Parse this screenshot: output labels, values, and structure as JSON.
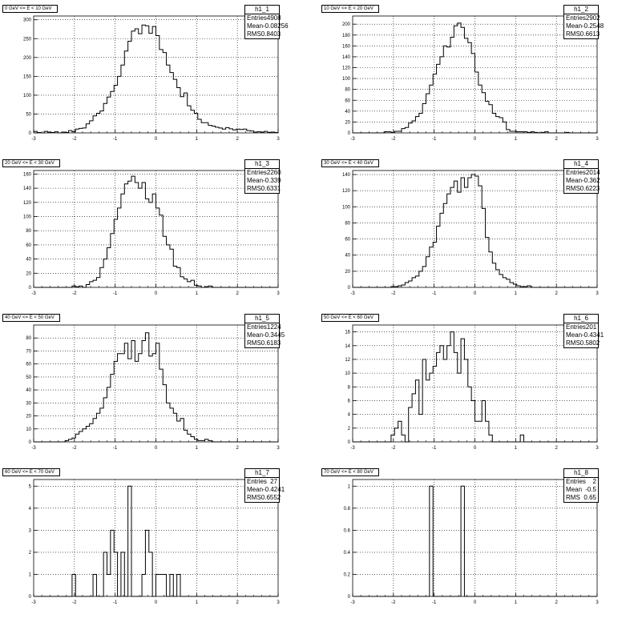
{
  "canvas_footer": "",
  "chart_data": [
    {
      "type": "bar",
      "title": "0 GeV <= E < 10 GeV",
      "name": "h1_1",
      "stats": {
        "entries": "4908",
        "mean": "-0.08256",
        "rms": "0.8403"
      },
      "xlim": [
        -3,
        3
      ],
      "ylim": [
        0,
        310
      ],
      "xticks": [
        -3,
        -2,
        -1,
        0,
        1,
        2,
        3
      ],
      "yticks": [
        0,
        50,
        100,
        150,
        200,
        250,
        300
      ],
      "values": [
        4,
        1,
        0,
        4,
        2,
        1,
        3,
        0,
        2,
        1,
        6,
        3,
        10,
        12,
        13,
        24,
        32,
        45,
        52,
        58,
        78,
        95,
        110,
        126,
        150,
        180,
        217,
        243,
        270,
        276,
        263,
        286,
        284,
        264,
        282,
        258,
        221,
        213,
        180,
        160,
        142,
        120,
        96,
        106,
        72,
        60,
        52,
        36,
        27,
        27,
        20,
        18,
        15,
        13,
        10,
        14,
        11,
        8,
        10,
        9,
        10,
        6,
        5,
        2,
        3,
        2,
        4,
        1,
        2,
        1
      ]
    },
    {
      "type": "bar",
      "title": "10 GeV <= E < 20 GeV",
      "name": "h1_2",
      "stats": {
        "entries": "2902",
        "mean": "-0.2548",
        "rms": "0.6613"
      },
      "xlim": [
        -3,
        3
      ],
      "ylim": [
        0,
        215
      ],
      "xticks": [
        -3,
        -2,
        -1,
        0,
        1,
        2,
        3
      ],
      "yticks": [
        0,
        20,
        40,
        60,
        80,
        100,
        120,
        140,
        160,
        180,
        200
      ],
      "values": [
        0,
        0,
        0,
        0,
        0,
        0,
        0,
        0,
        0,
        2,
        2,
        1,
        3,
        3,
        8,
        10,
        18,
        22,
        30,
        36,
        54,
        72,
        88,
        108,
        126,
        140,
        160,
        158,
        176,
        197,
        202,
        194,
        174,
        166,
        146,
        112,
        88,
        74,
        58,
        52,
        36,
        30,
        28,
        20,
        6,
        3,
        3,
        2,
        2,
        2,
        1,
        2,
        1,
        0,
        1,
        2,
        0,
        0,
        0,
        0,
        0,
        1,
        0,
        0,
        0,
        0,
        0,
        0,
        0,
        0
      ]
    },
    {
      "type": "bar",
      "title": "20 GeV <= E < 30 GeV",
      "name": "h1_3",
      "stats": {
        "entries": "2260",
        "mean": "-0.339",
        "rms": "0.6331"
      },
      "xlim": [
        -3,
        3
      ],
      "ylim": [
        0,
        165
      ],
      "xticks": [
        -3,
        -2,
        -1,
        0,
        1,
        2,
        3
      ],
      "yticks": [
        0,
        20,
        40,
        60,
        80,
        100,
        120,
        140,
        160
      ],
      "values": [
        0,
        0,
        0,
        0,
        0,
        0,
        0,
        0,
        0,
        0,
        0,
        2,
        1,
        2,
        0,
        4,
        8,
        10,
        14,
        28,
        40,
        56,
        76,
        96,
        112,
        132,
        146,
        150,
        157,
        148,
        140,
        148,
        125,
        120,
        132,
        112,
        102,
        72,
        60,
        54,
        30,
        28,
        15,
        12,
        8,
        10,
        3,
        2,
        0,
        1,
        2,
        0,
        0,
        0,
        0,
        0,
        0,
        0,
        0,
        0,
        0,
        0,
        0,
        0,
        0,
        0,
        0,
        0,
        0,
        0
      ]
    },
    {
      "type": "bar",
      "title": "30 GeV <= E < 40 GeV",
      "name": "h1_4",
      "stats": {
        "entries": "2014",
        "mean": "-0.362",
        "rms": "0.6223"
      },
      "xlim": [
        -3,
        3
      ],
      "ylim": [
        0,
        145
      ],
      "xticks": [
        -3,
        -2,
        -1,
        0,
        1,
        2,
        3
      ],
      "yticks": [
        0,
        20,
        40,
        60,
        80,
        100,
        120,
        140
      ],
      "values": [
        0,
        0,
        0,
        0,
        0,
        0,
        0,
        0,
        0,
        0,
        0,
        1,
        1,
        2,
        3,
        6,
        8,
        12,
        14,
        20,
        26,
        38,
        50,
        56,
        76,
        92,
        104,
        116,
        124,
        132,
        118,
        136,
        124,
        136,
        140,
        138,
        126,
        98,
        62,
        44,
        30,
        22,
        16,
        12,
        10,
        6,
        4,
        2,
        1,
        1,
        2,
        0,
        0,
        0,
        0,
        0,
        0,
        0,
        0,
        0,
        0,
        0,
        0,
        0,
        0,
        0,
        0,
        0,
        0,
        0
      ]
    },
    {
      "type": "bar",
      "title": "40 GeV <= E < 50 GeV",
      "name": "h1_5",
      "stats": {
        "entries": "1224",
        "mean": "-0.3445",
        "rms": "0.6183"
      },
      "xlim": [
        -3,
        3
      ],
      "ylim": [
        0,
        90
      ],
      "xticks": [
        -3,
        -2,
        -1,
        0,
        1,
        2,
        3
      ],
      "yticks": [
        0,
        10,
        20,
        30,
        40,
        50,
        60,
        70,
        80
      ],
      "values": [
        0,
        0,
        0,
        0,
        0,
        0,
        0,
        0,
        0,
        1,
        2,
        3,
        6,
        8,
        10,
        12,
        14,
        18,
        22,
        26,
        34,
        42,
        52,
        62,
        68,
        68,
        76,
        64,
        78,
        62,
        68,
        78,
        84,
        66,
        68,
        76,
        56,
        44,
        30,
        26,
        22,
        16,
        18,
        9,
        6,
        4,
        2,
        1,
        1,
        2,
        1,
        0,
        0,
        0,
        0,
        0,
        0,
        0,
        0,
        0,
        0,
        0,
        0,
        0,
        0,
        0,
        0,
        0,
        0,
        0
      ]
    },
    {
      "type": "bar",
      "title": "50 GeV <= E < 60 GeV",
      "name": "h1_6",
      "stats": {
        "entries": "201",
        "mean": "-0.4341",
        "rms": "0.5802"
      },
      "xlim": [
        -3,
        3
      ],
      "ylim": [
        0,
        17
      ],
      "xticks": [
        -3,
        -2,
        -1,
        0,
        1,
        2,
        3
      ],
      "yticks": [
        0,
        2,
        4,
        6,
        8,
        10,
        12,
        14,
        16
      ],
      "values": [
        0,
        0,
        0,
        0,
        0,
        0,
        0,
        0,
        0,
        0,
        0,
        1,
        2,
        3,
        1,
        0,
        5,
        7,
        9,
        4,
        12,
        9,
        10,
        11,
        13,
        14,
        12,
        14,
        16,
        13,
        10,
        15,
        12,
        8,
        6,
        3,
        3,
        6,
        3,
        1,
        0,
        0,
        0,
        0,
        0,
        0,
        0,
        0,
        1,
        0,
        0,
        0,
        0,
        0,
        0,
        0,
        0,
        0,
        0,
        0,
        0,
        0,
        0,
        0,
        0,
        0,
        0,
        0,
        0,
        0
      ]
    },
    {
      "type": "bar",
      "title": "60 GeV <= E < 70 GeV",
      "name": "h1_7",
      "stats": {
        "entries": "27",
        "mean": "-0.4241",
        "rms": "0.6552"
      },
      "xlim": [
        -3,
        3
      ],
      "ylim": [
        0,
        5.3
      ],
      "xticks": [
        -3,
        -2,
        -1,
        0,
        1,
        2,
        3
      ],
      "yticks": [
        0,
        1,
        2,
        3,
        4,
        5
      ],
      "values": [
        0,
        0,
        0,
        0,
        0,
        0,
        0,
        0,
        0,
        0,
        0,
        1,
        0,
        0,
        0,
        0,
        0,
        1,
        0,
        0,
        2,
        1,
        3,
        2,
        0,
        2,
        0,
        5,
        0,
        0,
        0,
        1,
        3,
        2,
        0,
        1,
        1,
        1,
        0,
        1,
        0,
        1,
        0,
        0,
        0,
        0,
        0,
        0,
        0,
        0,
        0,
        0,
        0,
        0,
        0,
        0,
        0,
        0,
        0,
        0,
        0,
        0,
        0,
        0,
        0,
        0,
        0,
        0,
        0,
        0
      ]
    },
    {
      "type": "bar",
      "title": "70 GeV <= E < 80 GeV",
      "name": "h1_8",
      "stats": {
        "entries": "2",
        "mean": "-0.5",
        "rms": "0.65"
      },
      "xlim": [
        -3,
        3
      ],
      "ylim": [
        0,
        1.06
      ],
      "xticks": [
        -3,
        -2,
        -1,
        0,
        1,
        2,
        3
      ],
      "yticks": [
        0,
        0.2,
        0.4,
        0.6,
        0.8,
        1
      ],
      "values": [
        0,
        0,
        0,
        0,
        0,
        0,
        0,
        0,
        0,
        0,
        0,
        0,
        0,
        0,
        0,
        0,
        0,
        0,
        0,
        0,
        0,
        0,
        1,
        0,
        0,
        0,
        0,
        0,
        0,
        0,
        0,
        1,
        0,
        0,
        0,
        0,
        0,
        0,
        0,
        0,
        0,
        0,
        0,
        0,
        0,
        0,
        0,
        0,
        0,
        0,
        0,
        0,
        0,
        0,
        0,
        0,
        0,
        0,
        0,
        0,
        0,
        0,
        0,
        0,
        0,
        0,
        0,
        0,
        0,
        0
      ]
    }
  ],
  "stat_labels": {
    "entries": "Entries",
    "mean": "Mean",
    "rms": "RMS"
  }
}
